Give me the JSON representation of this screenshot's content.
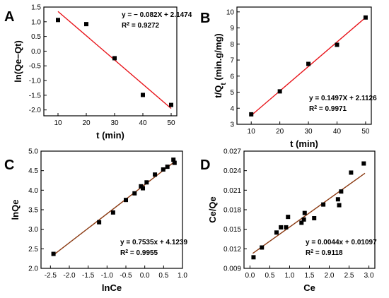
{
  "chart_data": [
    {
      "type": "scatter",
      "panel_label": "A",
      "xlabel": "t (min)",
      "ylabel": "ln(Qe−Qt)",
      "xlim": [
        5,
        52
      ],
      "ylim": [
        -2.2,
        1.5
      ],
      "xticks": [
        10,
        20,
        30,
        40,
        50
      ],
      "yticks": [
        -2.0,
        -1.5,
        -1.0,
        -0.5,
        0.0,
        0.5,
        1.0,
        1.5
      ],
      "ytick_decimals": 1,
      "points": [
        [
          10,
          1.06
        ],
        [
          20,
          0.92
        ],
        [
          30,
          -0.24
        ],
        [
          40,
          -1.49
        ],
        [
          50,
          -1.83
        ]
      ],
      "fit": {
        "x": [
          10,
          50
        ],
        "y": [
          1.35,
          -1.95
        ]
      },
      "fit_color": "#e8141a",
      "equation": "y = − 0.082X + 2.1474",
      "r2_prefix": "R",
      "r2_sup": "2",
      "r2_value": " = 0.9272",
      "annotation_position": "top-right"
    },
    {
      "type": "scatter",
      "panel_label": "B",
      "xlabel": "t (min)",
      "ylabel": "t/Qt (min.g/mg)",
      "ylabel_parts": [
        "t/Q",
        "t",
        " (min.g/mg)"
      ],
      "xlim": [
        5,
        52
      ],
      "ylim": [
        3,
        10.3
      ],
      "xticks": [
        10,
        20,
        30,
        40,
        50
      ],
      "yticks": [
        3,
        4,
        5,
        6,
        7,
        8,
        9,
        10
      ],
      "ytick_decimals": 0,
      "points": [
        [
          10,
          3.62
        ],
        [
          20,
          5.05
        ],
        [
          30,
          6.76
        ],
        [
          40,
          7.95
        ],
        [
          50,
          9.65
        ]
      ],
      "fit": {
        "x": [
          10,
          50
        ],
        "y": [
          3.55,
          9.65
        ]
      },
      "fit_color": "#e8141a",
      "equation": "y = 0.1497X + 2.1126",
      "r2_prefix": "R",
      "r2_sup": "2",
      "r2_value": " = 0.9971",
      "annotation_position": "bottom-right"
    },
    {
      "type": "scatter",
      "panel_label": "C",
      "xlabel": "lnCe",
      "ylabel": "lnQe",
      "xlim": [
        -2.75,
        1.0
      ],
      "ylim": [
        2.0,
        5.0
      ],
      "xticks": [
        -2.5,
        -2.0,
        -1.5,
        -1.0,
        -0.5,
        0.0,
        0.5,
        1.0
      ],
      "xtick_decimals": 1,
      "yticks": [
        2.0,
        2.5,
        3.0,
        3.5,
        4.0,
        4.5,
        5.0
      ],
      "ytick_decimals": 1,
      "points": [
        [
          -2.42,
          2.37
        ],
        [
          -1.21,
          3.18
        ],
        [
          -0.84,
          3.43
        ],
        [
          -0.5,
          3.75
        ],
        [
          -0.27,
          3.92
        ],
        [
          -0.1,
          4.1
        ],
        [
          -0.05,
          4.05
        ],
        [
          0.05,
          4.2
        ],
        [
          0.27,
          4.4
        ],
        [
          0.49,
          4.53
        ],
        [
          0.6,
          4.6
        ],
        [
          0.76,
          4.78
        ],
        [
          0.79,
          4.7
        ]
      ],
      "fit": {
        "x": [
          -2.45,
          0.82
        ],
        "y": [
          2.32,
          4.75
        ]
      },
      "fit_color": "#8b3a12",
      "equation": "y = 0.7535x + 4.1239",
      "r2_prefix": "R",
      "r2_sup": "2",
      "r2_value": " = 0.9955",
      "annotation_position": "bottom-right"
    },
    {
      "type": "scatter",
      "panel_label": "D",
      "xlabel": "Ce",
      "ylabel": "Ce/Qe",
      "xlim": [
        -0.15,
        3.15
      ],
      "ylim": [
        0.009,
        0.027
      ],
      "xticks": [
        0.0,
        0.5,
        1.0,
        1.5,
        2.0,
        2.5,
        3.0
      ],
      "xtick_decimals": 1,
      "yticks": [
        0.009,
        0.012,
        0.015,
        0.018,
        0.021,
        0.024,
        0.027
      ],
      "ytick_decimals": 3,
      "points": [
        [
          0.09,
          0.0107
        ],
        [
          0.3,
          0.0122
        ],
        [
          0.67,
          0.0145
        ],
        [
          0.78,
          0.0153
        ],
        [
          0.91,
          0.0153
        ],
        [
          0.96,
          0.0169
        ],
        [
          1.3,
          0.016
        ],
        [
          1.36,
          0.0165
        ],
        [
          1.38,
          0.0175
        ],
        [
          1.62,
          0.0167
        ],
        [
          1.85,
          0.0188
        ],
        [
          2.22,
          0.0196
        ],
        [
          2.25,
          0.0187
        ],
        [
          2.3,
          0.0208
        ],
        [
          2.55,
          0.0237
        ],
        [
          2.87,
          0.0251
        ]
      ],
      "fit": {
        "x": [
          0.07,
          2.9
        ],
        "y": [
          0.0113,
          0.0236
        ]
      },
      "fit_color": "#8b3a12",
      "equation": "y = 0.0044x + 0.01097",
      "r2_prefix": "R",
      "r2_sup": "2",
      "r2_value": " = 0.9118",
      "annotation_position": "bottom-right"
    }
  ]
}
